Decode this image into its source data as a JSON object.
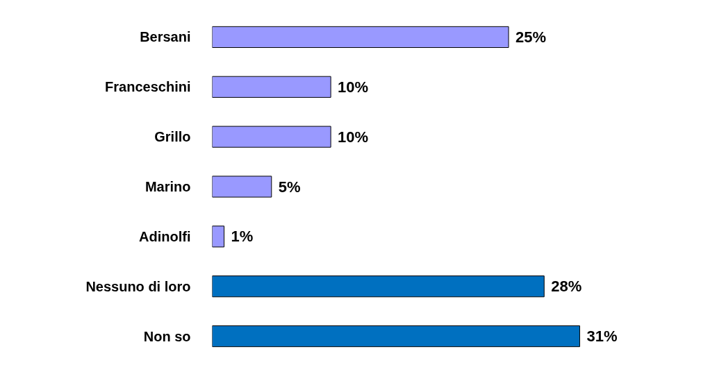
{
  "chart_data": {
    "type": "bar",
    "orientation": "horizontal",
    "categories": [
      "Bersani",
      "Franceschini",
      "Grillo",
      "Marino",
      "Adinolfi",
      "Nessuno di loro",
      "Non so"
    ],
    "values": [
      25,
      10,
      10,
      5,
      1,
      28,
      31
    ],
    "colors": [
      "#9999ff",
      "#9999ff",
      "#9999ff",
      "#9999ff",
      "#9999ff",
      "#0070c0",
      "#0070c0"
    ],
    "value_labels": [
      "25%",
      "10%",
      "10%",
      "5%",
      "1%",
      "28%",
      "31%"
    ],
    "grid": false
  }
}
